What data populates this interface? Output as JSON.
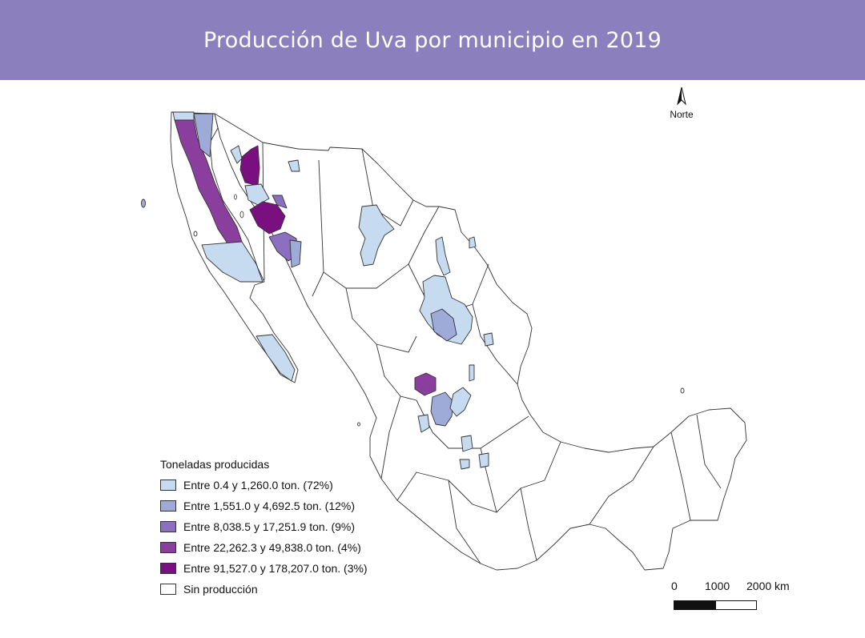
{
  "title": "Producción de Uva por municipio en 2019",
  "north_arrow": {
    "label": "Norte",
    "icon": "north-arrow-icon"
  },
  "legend": {
    "title": "Toneladas producidas",
    "items": [
      {
        "label": "Entre 0.4 y 1,260.0 ton. (72%)",
        "color": "#c6dbef"
      },
      {
        "label": "Entre 1,551.0 y 4,692.5 ton. (12%)",
        "color": "#9eabd8"
      },
      {
        "label": "Entre 8,038.5 y 17,251.9 ton. (9%)",
        "color": "#8c6fc0"
      },
      {
        "label": "Entre 22,262.3 y 49,838.0 ton. (4%)",
        "color": "#8a3f9f"
      },
      {
        "label": "Entre 91,527.0 y 178,207.0 ton. (3%)",
        "color": "#7a0f80"
      },
      {
        "label": "Sin producción",
        "color": "#ffffff"
      }
    ]
  },
  "scale_bar": {
    "labels": [
      "0",
      "1000",
      "2000 km"
    ]
  },
  "colors": {
    "header": "#8b7fbe",
    "border": "#333333"
  }
}
